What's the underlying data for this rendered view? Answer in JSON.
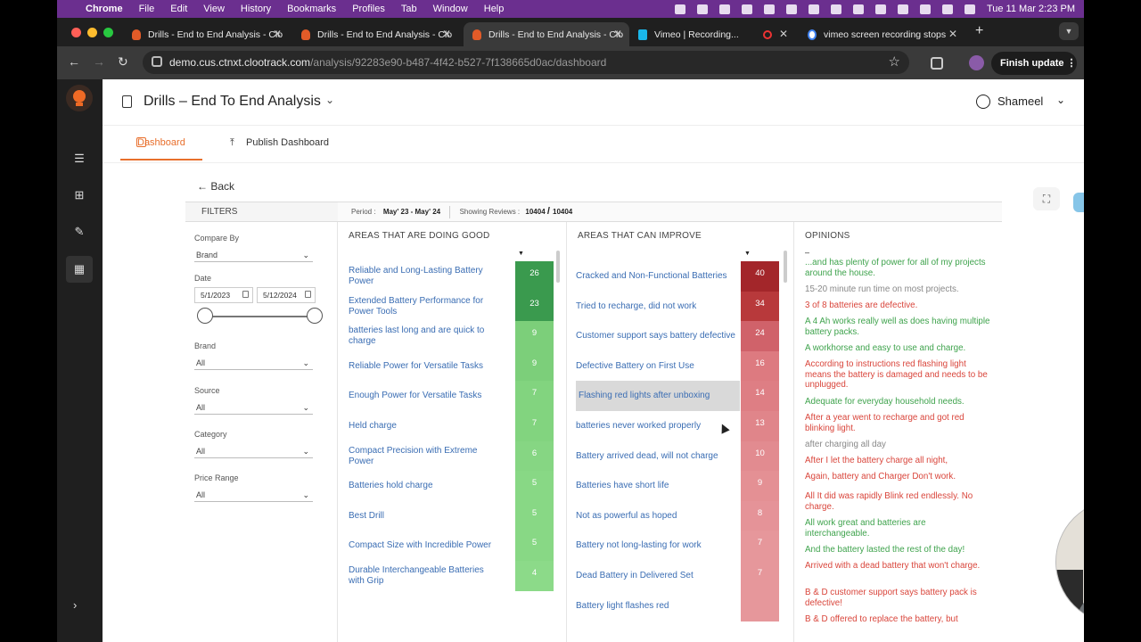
{
  "menubar": {
    "app": "Chrome",
    "items": [
      "File",
      "Edit",
      "View",
      "History",
      "Bookmarks",
      "Profiles",
      "Tab",
      "Window",
      "Help"
    ],
    "datetime": "Tue 11 Mar  2:23 PM"
  },
  "browser": {
    "tabs": [
      {
        "title": "Drills - End to End Analysis - Clo",
        "icon": "cloo-bulb-icon"
      },
      {
        "title": "Drills - End to End Analysis - Clo",
        "icon": "cloo-bulb-icon"
      },
      {
        "title": "Drills - End to End Analysis - Clo",
        "icon": "cloo-bulb-icon"
      },
      {
        "title": "Vimeo | Recording...",
        "icon": "vimeo-icon"
      },
      {
        "title": "vimeo screen recording stops",
        "icon": "google-icon"
      }
    ],
    "url_domain": "demo.cus.ctnxt.clootrack.com",
    "url_path": "/analysis/92283e90-b487-4f42-b527-7f138665d0ac/dashboard",
    "finish_update": "Finish update"
  },
  "app": {
    "title": "Drills – End To End Analysis",
    "user": "Shameel",
    "tabs": {
      "dashboard": "Dashboard",
      "publish": "Publish Dashboard"
    },
    "back": "Back"
  },
  "filters": {
    "heading": "FILTERS",
    "compare_by": {
      "label": "Compare By",
      "value": "Brand"
    },
    "date": {
      "label": "Date",
      "from": "5/1/2023",
      "to": "5/12/2024"
    },
    "brand": {
      "label": "Brand",
      "value": "All"
    },
    "source": {
      "label": "Source",
      "value": "All"
    },
    "category": {
      "label": "Category",
      "value": "All"
    },
    "price_range": {
      "label": "Price Range",
      "value": "All"
    }
  },
  "period": {
    "label": "Period :",
    "value": "May' 23 - May' 24",
    "showing_label": "Showing Reviews :",
    "showing": "10404",
    "total": "10404"
  },
  "doing_good": {
    "heading": "AREAS THAT ARE DOING GOOD",
    "items": [
      {
        "label": "Reliable and Long-Lasting Battery Power",
        "count": "26",
        "color": "#3a9a4e"
      },
      {
        "label": "Extended Battery Performance for Power Tools",
        "count": "23",
        "color": "#3a9a4e"
      },
      {
        "label": "batteries last long and are quick to charge",
        "count": "9",
        "color": "#7ccf7a"
      },
      {
        "label": "Reliable Power for Versatile Tasks",
        "count": "9",
        "color": "#7ccf7a"
      },
      {
        "label": "Enough Power for Versatile Tasks",
        "count": "7",
        "color": "#82d47f"
      },
      {
        "label": "Held charge",
        "count": "7",
        "color": "#82d47f"
      },
      {
        "label": "Compact Precision with Extreme Power",
        "count": "6",
        "color": "#86d683"
      },
      {
        "label": "Batteries hold charge",
        "count": "5",
        "color": "#88d885"
      },
      {
        "label": "Best Drill",
        "count": "5",
        "color": "#88d885"
      },
      {
        "label": "Compact Size with Incredible Power",
        "count": "5",
        "color": "#88d885"
      },
      {
        "label": "Durable Interchangeable Batteries with Grip",
        "count": "4",
        "color": "#8cda89"
      }
    ]
  },
  "can_improve": {
    "heading": "AREAS THAT CAN IMPROVE",
    "items": [
      {
        "label": "Cracked and Non-Functional Batteries",
        "count": "40",
        "color": "#a3262a"
      },
      {
        "label": "Tried to recharge, did not work",
        "count": "34",
        "color": "#b8393b"
      },
      {
        "label": "Customer support says battery defective",
        "count": "24",
        "color": "#d0626a"
      },
      {
        "label": "Defective Battery on First Use",
        "count": "16",
        "color": "#dd7a80"
      },
      {
        "label": "Flashing red lights after unboxing",
        "count": "14",
        "color": "#de7e84"
      },
      {
        "label": "batteries never worked properly",
        "count": "13",
        "color": "#e0858a"
      },
      {
        "label": "Battery arrived dead, will not charge",
        "count": "10",
        "color": "#e28b90"
      },
      {
        "label": "Batteries have short life",
        "count": "9",
        "color": "#e49094"
      },
      {
        "label": "Not as powerful as hoped",
        "count": "8",
        "color": "#e59398"
      },
      {
        "label": "Battery not long-lasting for work",
        "count": "7",
        "color": "#e6979b"
      },
      {
        "label": "Dead Battery in Delivered Set",
        "count": "7",
        "color": "#e6979b"
      },
      {
        "label": "Battery light flashes red",
        "count": "",
        "color": "#e6979b"
      }
    ]
  },
  "opinions": {
    "heading": "OPINIONS",
    "items": [
      {
        "text": "...and has plenty of power for all of my projects around the house.",
        "tone": "pos"
      },
      {
        "text": "15-20 minute run time on most projects.",
        "tone": "neu"
      },
      {
        "text": "3 of 8 batteries are defective.",
        "tone": "neg"
      },
      {
        "text": "A 4 Ah works really well as does having multiple battery packs.",
        "tone": "pos"
      },
      {
        "text": "A workhorse and easy to use and charge.",
        "tone": "pos"
      },
      {
        "text": "According to instructions red flashing light means the battery is damaged and needs to be unplugged.",
        "tone": "neg"
      },
      {
        "text": "Adequate for everyday household needs.",
        "tone": "pos"
      },
      {
        "text": "After a year went to recharge and got red blinking light.",
        "tone": "neg"
      },
      {
        "text": "after charging all day",
        "tone": "neu"
      },
      {
        "text": "After I let the battery charge all night,",
        "tone": "neg"
      },
      {
        "text": "Again, battery and Charger Don't work.",
        "tone": "neg"
      },
      {
        "text": "All It did was rapidly Blink red endlessly. No charge.",
        "tone": "neg"
      },
      {
        "text": "All work great and batteries are interchangeable.",
        "tone": "pos"
      },
      {
        "text": "And the battery lasted the rest of the day!",
        "tone": "pos"
      },
      {
        "text": "Arrived with a dead battery that won't charge.",
        "tone": "neg"
      },
      {
        "text": "B & D customer support says battery pack is defective!",
        "tone": "neg"
      },
      {
        "text": "B & D offered to replace the battery, but",
        "tone": "neg"
      }
    ]
  }
}
